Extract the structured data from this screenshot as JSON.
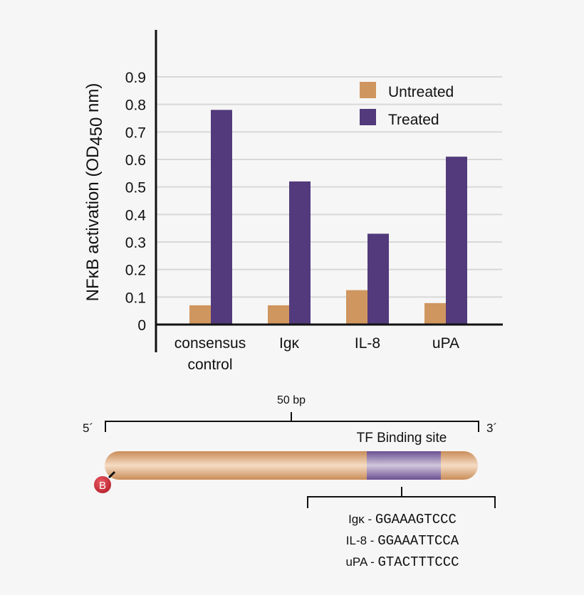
{
  "chart_data": {
    "type": "bar",
    "title": "",
    "xlabel": "",
    "ylabel": {
      "prefix": "NFκB activation (OD",
      "subscript": "450",
      "suffix": " nm)"
    },
    "categories": [
      [
        "consensus",
        "control"
      ],
      [
        "Igκ"
      ],
      [
        "IL-8"
      ],
      [
        "uPA"
      ]
    ],
    "series": [
      {
        "name": "Untreated",
        "color": "#d0965f",
        "values": [
          0.07,
          0.07,
          0.125,
          0.078
        ]
      },
      {
        "name": "Treated",
        "color": "#523a7c",
        "values": [
          0.78,
          0.52,
          0.33,
          0.61
        ]
      }
    ],
    "yticks": [
      "0",
      "0.1",
      "0.2",
      "0.3",
      "0.4",
      "0.5",
      "0.6",
      "0.7",
      "0.8",
      "0.9"
    ],
    "ylim": [
      0,
      0.9
    ],
    "grid": true,
    "legend_position": "top-right"
  },
  "diagram": {
    "length_label": "50 bp",
    "five_prime": "5´",
    "three_prime": "3´",
    "binding_site_label": "TF Binding site",
    "biotin_label": "B",
    "sequences": [
      {
        "name": "Igκ",
        "sep": " - ",
        "seq": "GGAAAGTCCC"
      },
      {
        "name": "IL-8",
        "sep": " - ",
        "seq": "GGAAATTCCA"
      },
      {
        "name": "uPA",
        "sep": " - ",
        "seq": "GTACTTTCCC"
      }
    ],
    "colors": {
      "strand": "#d49a68",
      "binding_site": "#6a4f92",
      "biotin": "#c8323e"
    }
  }
}
